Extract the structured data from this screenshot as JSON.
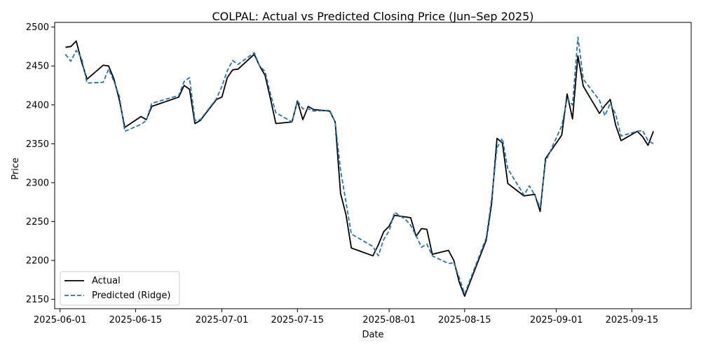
{
  "chart_data": {
    "type": "line",
    "title": "COLPAL: Actual vs Predicted Closing Price (Jun–Sep 2025)",
    "xlabel": "Date",
    "ylabel": "Price",
    "x_type": "date",
    "xlim": [
      "2025-05-31",
      "2025-09-26"
    ],
    "ylim": [
      2138,
      2506
    ],
    "xticks": [
      "2025-06-01",
      "2025-06-15",
      "2025-07-01",
      "2025-07-15",
      "2025-08-01",
      "2025-08-15",
      "2025-09-01",
      "2025-09-15"
    ],
    "yticks": [
      2150,
      2200,
      2250,
      2300,
      2350,
      2400,
      2450,
      2500
    ],
    "grid": false,
    "legend": "lower-left",
    "series": [
      {
        "name": "Actual",
        "color": "#000000",
        "style": "solid",
        "points": [
          [
            "2025-06-02",
            2474
          ],
          [
            "2025-06-03",
            2475
          ],
          [
            "2025-06-04",
            2482
          ],
          [
            "2025-06-05",
            2455
          ],
          [
            "2025-06-06",
            2433
          ],
          [
            "2025-06-09",
            2451
          ],
          [
            "2025-06-10",
            2450
          ],
          [
            "2025-06-11",
            2433
          ],
          [
            "2025-06-12",
            2406
          ],
          [
            "2025-06-13",
            2371
          ],
          [
            "2025-06-16",
            2385
          ],
          [
            "2025-06-17",
            2381
          ],
          [
            "2025-06-18",
            2398
          ],
          [
            "2025-06-23",
            2410
          ],
          [
            "2025-06-24",
            2425
          ],
          [
            "2025-06-25",
            2420
          ],
          [
            "2025-06-26",
            2376
          ],
          [
            "2025-06-27",
            2380
          ],
          [
            "2025-06-30",
            2407
          ],
          [
            "2025-07-01",
            2410
          ],
          [
            "2025-07-02",
            2435
          ],
          [
            "2025-07-03",
            2445
          ],
          [
            "2025-07-04",
            2446
          ],
          [
            "2025-07-07",
            2465
          ],
          [
            "2025-07-08",
            2450
          ],
          [
            "2025-07-09",
            2438
          ],
          [
            "2025-07-10",
            2408
          ],
          [
            "2025-07-11",
            2376
          ],
          [
            "2025-07-14",
            2378
          ],
          [
            "2025-07-15",
            2405
          ],
          [
            "2025-07-16",
            2381
          ],
          [
            "2025-07-17",
            2398
          ],
          [
            "2025-07-18",
            2394
          ],
          [
            "2025-07-21",
            2392
          ],
          [
            "2025-07-22",
            2378
          ],
          [
            "2025-07-23",
            2286
          ],
          [
            "2025-07-24",
            2259
          ],
          [
            "2025-07-25",
            2216
          ],
          [
            "2025-07-29",
            2206
          ],
          [
            "2025-07-30",
            2220
          ],
          [
            "2025-07-31",
            2237
          ],
          [
            "2025-08-01",
            2244
          ],
          [
            "2025-08-02",
            2258
          ],
          [
            "2025-08-04",
            2256
          ],
          [
            "2025-08-05",
            2255
          ],
          [
            "2025-08-06",
            2231
          ],
          [
            "2025-08-07",
            2241
          ],
          [
            "2025-08-08",
            2240
          ],
          [
            "2025-08-09",
            2208
          ],
          [
            "2025-08-12",
            2213
          ],
          [
            "2025-08-13",
            2200
          ],
          [
            "2025-08-14",
            2172
          ],
          [
            "2025-08-15",
            2154
          ],
          [
            "2025-08-19",
            2226
          ],
          [
            "2025-08-20",
            2273
          ],
          [
            "2025-08-21",
            2357
          ],
          [
            "2025-08-22",
            2351
          ],
          [
            "2025-08-23",
            2299
          ],
          [
            "2025-08-26",
            2283
          ],
          [
            "2025-08-28",
            2285
          ],
          [
            "2025-08-29",
            2263
          ],
          [
            "2025-08-30",
            2331
          ],
          [
            "2025-09-02",
            2361
          ],
          [
            "2025-09-03",
            2414
          ],
          [
            "2025-09-04",
            2382
          ],
          [
            "2025-09-05",
            2463
          ],
          [
            "2025-09-06",
            2424
          ],
          [
            "2025-09-09",
            2389
          ],
          [
            "2025-09-10",
            2399
          ],
          [
            "2025-09-11",
            2407
          ],
          [
            "2025-09-12",
            2374
          ],
          [
            "2025-09-13",
            2354
          ],
          [
            "2025-09-16",
            2366
          ],
          [
            "2025-09-17",
            2359
          ],
          [
            "2025-09-18",
            2348
          ],
          [
            "2025-09-19",
            2366
          ]
        ]
      },
      {
        "name": "Predicted (Ridge)",
        "color": "#1f77b4",
        "style": "dashed",
        "points": [
          [
            "2025-06-02",
            2465
          ],
          [
            "2025-06-03",
            2456
          ],
          [
            "2025-06-04",
            2470
          ],
          [
            "2025-06-05",
            2460
          ],
          [
            "2025-06-06",
            2428
          ],
          [
            "2025-06-09",
            2429
          ],
          [
            "2025-06-10",
            2446
          ],
          [
            "2025-06-11",
            2430
          ],
          [
            "2025-06-12",
            2411
          ],
          [
            "2025-06-13",
            2366
          ],
          [
            "2025-06-16",
            2375
          ],
          [
            "2025-06-17",
            2380
          ],
          [
            "2025-06-18",
            2402
          ],
          [
            "2025-06-23",
            2412
          ],
          [
            "2025-06-24",
            2430
          ],
          [
            "2025-06-25",
            2435
          ],
          [
            "2025-06-26",
            2380
          ],
          [
            "2025-06-27",
            2381
          ],
          [
            "2025-06-30",
            2408
          ],
          [
            "2025-07-01",
            2424
          ],
          [
            "2025-07-02",
            2444
          ],
          [
            "2025-07-03",
            2457
          ],
          [
            "2025-07-04",
            2452
          ],
          [
            "2025-07-07",
            2467
          ],
          [
            "2025-07-08",
            2450
          ],
          [
            "2025-07-09",
            2443
          ],
          [
            "2025-07-10",
            2414
          ],
          [
            "2025-07-11",
            2390
          ],
          [
            "2025-07-14",
            2378
          ],
          [
            "2025-07-15",
            2405
          ],
          [
            "2025-07-16",
            2395
          ],
          [
            "2025-07-17",
            2395
          ],
          [
            "2025-07-18",
            2392
          ],
          [
            "2025-07-21",
            2393
          ],
          [
            "2025-07-22",
            2378
          ],
          [
            "2025-07-23",
            2316
          ],
          [
            "2025-07-24",
            2275
          ],
          [
            "2025-07-25",
            2234
          ],
          [
            "2025-07-29",
            2218
          ],
          [
            "2025-07-30",
            2206
          ],
          [
            "2025-07-31",
            2227
          ],
          [
            "2025-08-01",
            2238
          ],
          [
            "2025-08-02",
            2262
          ],
          [
            "2025-08-04",
            2253
          ],
          [
            "2025-08-05",
            2245
          ],
          [
            "2025-08-06",
            2232
          ],
          [
            "2025-08-07",
            2217
          ],
          [
            "2025-08-08",
            2221
          ],
          [
            "2025-08-09",
            2206
          ],
          [
            "2025-08-12",
            2196
          ],
          [
            "2025-08-13",
            2197
          ],
          [
            "2025-08-14",
            2178
          ],
          [
            "2025-08-15",
            2157
          ],
          [
            "2025-08-19",
            2229
          ],
          [
            "2025-08-20",
            2279
          ],
          [
            "2025-08-21",
            2345
          ],
          [
            "2025-08-22",
            2357
          ],
          [
            "2025-08-23",
            2318
          ],
          [
            "2025-08-26",
            2284
          ],
          [
            "2025-08-27",
            2296
          ],
          [
            "2025-08-28",
            2284
          ],
          [
            "2025-08-29",
            2268
          ],
          [
            "2025-08-30",
            2327
          ],
          [
            "2025-09-02",
            2373
          ],
          [
            "2025-09-03",
            2408
          ],
          [
            "2025-09-04",
            2400
          ],
          [
            "2025-09-05",
            2487
          ],
          [
            "2025-09-06",
            2433
          ],
          [
            "2025-09-09",
            2406
          ],
          [
            "2025-09-10",
            2386
          ],
          [
            "2025-09-11",
            2402
          ],
          [
            "2025-09-12",
            2388
          ],
          [
            "2025-09-13",
            2360
          ],
          [
            "2025-09-16",
            2366
          ],
          [
            "2025-09-17",
            2367
          ],
          [
            "2025-09-18",
            2354
          ],
          [
            "2025-09-19",
            2350
          ]
        ]
      }
    ]
  }
}
